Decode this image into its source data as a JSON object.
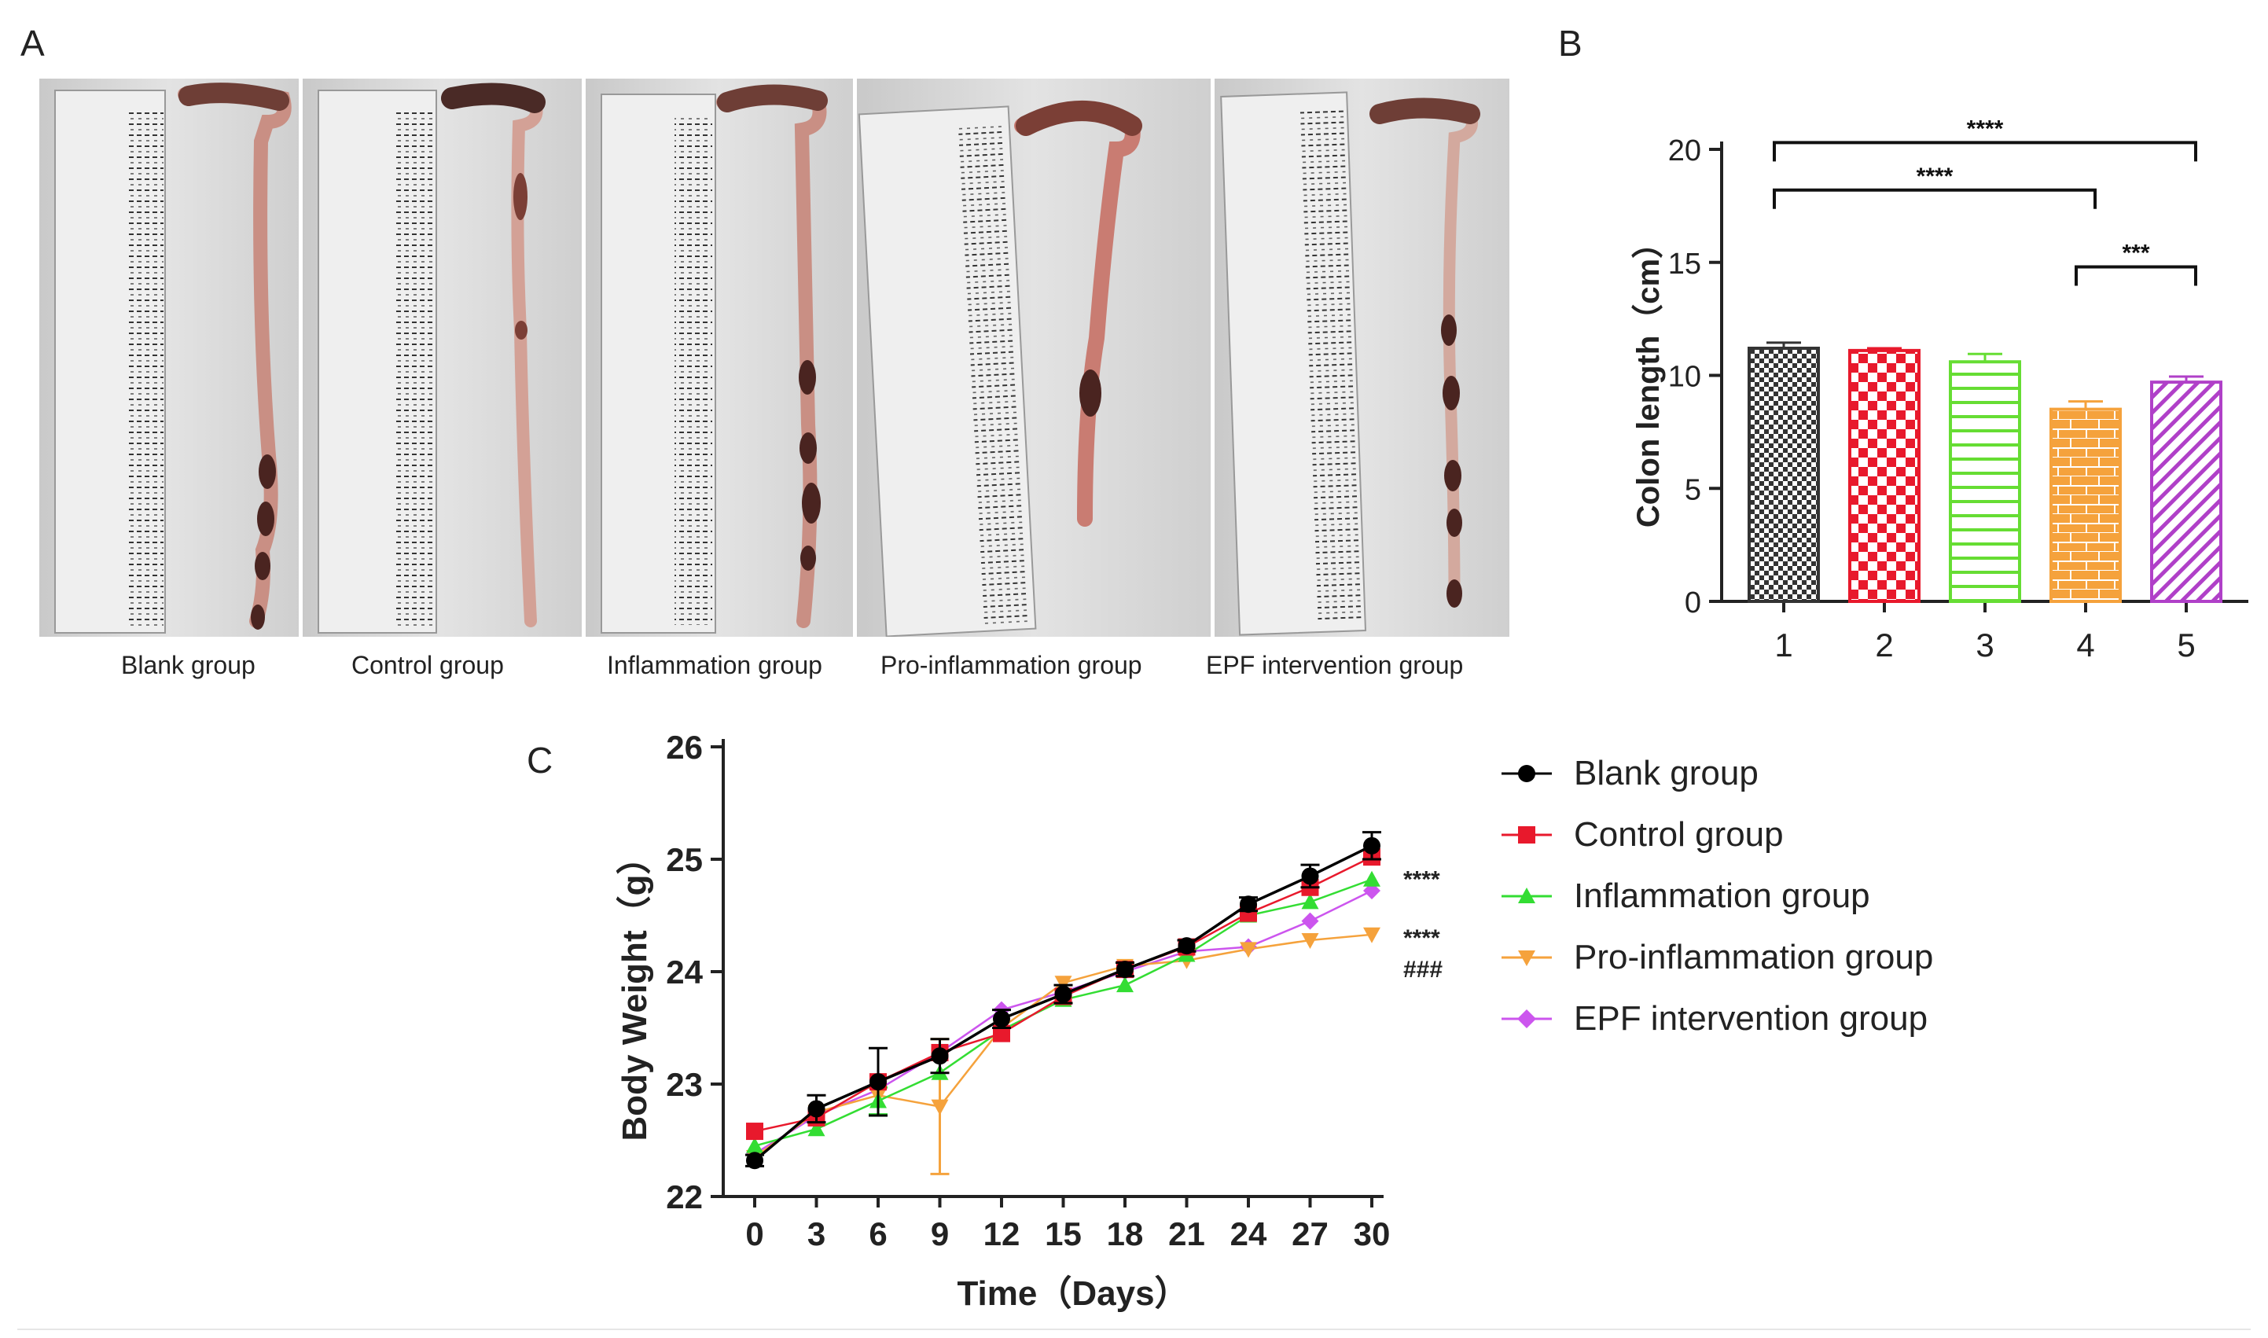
{
  "panels": {
    "a": "A",
    "b": "B",
    "c": "C"
  },
  "photos": {
    "groups": [
      "Blank group",
      "Control group",
      "Inflammation group",
      "Pro-inflammation group",
      "EPF intervention group"
    ]
  },
  "chart_data": [
    {
      "type": "bar",
      "panel": "B",
      "title": "",
      "xlabel": "",
      "ylabel": "Colon length（cm）",
      "ylim": [
        0,
        20
      ],
      "yticks": [
        0,
        5,
        10,
        15,
        20
      ],
      "categories": [
        "1",
        "2",
        "3",
        "4",
        "5"
      ],
      "values": [
        11.2,
        11.1,
        10.6,
        8.5,
        9.7
      ],
      "errors": [
        0.25,
        0.1,
        0.35,
        0.35,
        0.25
      ],
      "colors": [
        "#333333",
        "#e8192c",
        "#66dd33",
        "#f5a23c",
        "#b040c8"
      ],
      "patterns": [
        "checker",
        "checker-large",
        "horizontal-lines",
        "brick",
        "diagonal"
      ],
      "significance": [
        {
          "from": "1",
          "to": "5",
          "label": "****",
          "y": 20.3
        },
        {
          "from": "1",
          "to": "4",
          "label": "****",
          "y": 18.2
        },
        {
          "from": "4",
          "to": "5",
          "label": "***",
          "y": 14.8
        }
      ]
    },
    {
      "type": "line",
      "panel": "C",
      "title": "",
      "xlabel": "Time（Days）",
      "ylabel": "Body Weight（g）",
      "ylim": [
        22,
        26
      ],
      "xlim": [
        0,
        30
      ],
      "x": [
        0,
        3,
        6,
        9,
        12,
        15,
        18,
        21,
        24,
        27,
        30
      ],
      "yticks": [
        22,
        23,
        24,
        25,
        26
      ],
      "series": [
        {
          "name": "Blank group",
          "color": "#000000",
          "marker": "circle",
          "values": [
            22.32,
            22.78,
            23.02,
            23.25,
            23.58,
            23.8,
            24.02,
            24.23,
            24.6,
            24.85,
            25.12
          ],
          "errors": [
            0.05,
            0.12,
            0.3,
            0.15,
            0.08,
            0.08,
            0.06,
            0.05,
            0.06,
            0.1,
            0.12
          ]
        },
        {
          "name": "Control group",
          "color": "#e8192c",
          "marker": "square",
          "values": [
            22.58,
            22.7,
            23.02,
            23.28,
            23.45,
            23.78,
            24.02,
            24.22,
            24.52,
            24.75,
            25.02
          ],
          "errors": [
            0,
            0,
            0,
            0,
            0,
            0,
            0,
            0,
            0,
            0,
            0
          ]
        },
        {
          "name": "Inflammation group",
          "color": "#33dd33",
          "marker": "triangle-up",
          "values": [
            22.45,
            22.6,
            22.85,
            23.1,
            23.48,
            23.75,
            23.88,
            24.15,
            24.5,
            24.62,
            24.82
          ],
          "errors": [
            0,
            0,
            0.12,
            0,
            0,
            0,
            0,
            0,
            0,
            0,
            0
          ]
        },
        {
          "name": "Pro-inflammation group",
          "color": "#f5a23c",
          "marker": "triangle-down",
          "values": [
            22.35,
            22.75,
            22.9,
            22.8,
            23.5,
            23.9,
            24.05,
            24.1,
            24.2,
            24.28,
            24.33
          ],
          "errors": [
            0,
            0,
            0,
            0.6,
            0,
            0,
            0,
            0,
            0,
            0,
            0
          ]
        },
        {
          "name": "EPF intervention group",
          "color": "#cc55ee",
          "marker": "diamond",
          "values": [
            22.38,
            22.72,
            22.95,
            23.28,
            23.66,
            23.82,
            24.0,
            24.18,
            24.22,
            24.45,
            24.72
          ],
          "errors": [
            0,
            0,
            0,
            0,
            0,
            0,
            0,
            0,
            0,
            0,
            0
          ]
        }
      ],
      "annotations": [
        {
          "text": "****",
          "near_series": "Inflammation group"
        },
        {
          "text": "****",
          "near_series": "Pro-inflammation group"
        },
        {
          "text": "###",
          "near_series": "Pro-inflammation group"
        }
      ]
    }
  ]
}
